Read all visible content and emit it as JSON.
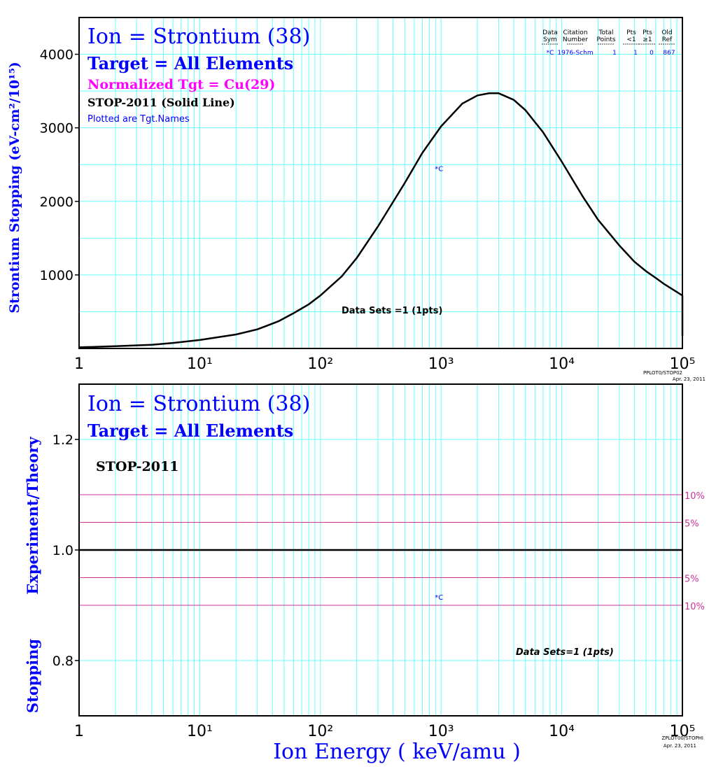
{
  "colors": {
    "blue": "#0000ff",
    "magenta": "#ff00ff",
    "grid": "#66ffff",
    "black": "#000000",
    "band": "#cc3399"
  },
  "top_panel": {
    "title": "Ion = Strontium (38)",
    "target": "Target = All Elements",
    "normalized": "Normalized Tgt = Cu(29)",
    "stop_line": "STOP-2011 (Solid Line)",
    "plotted": "Plotted are Tgt.Names",
    "data_sets": "Data Sets =1 (1pts)",
    "ylabel": "Strontium Stopping (eV-cm²/10¹⁵)",
    "footer_1": "PPLOT0/STOP02",
    "footer_2": "Apr. 23, 2011",
    "legend": {
      "headers": [
        [
          "Data",
          "Sym"
        ],
        [
          "Citation",
          "Number"
        ],
        [
          "Total",
          "Points"
        ],
        [
          "Pts",
          "<1"
        ],
        [
          "Pts",
          "≥1"
        ],
        [
          "Old",
          "Ref"
        ]
      ],
      "row": [
        "*C",
        "1976-Schm",
        "1",
        "1",
        "0",
        "867"
      ]
    }
  },
  "bottom_panel": {
    "title": "Ion = Strontium (38)",
    "target": "Target = All Elements",
    "stop_label": "STOP-2011",
    "data_sets": "Data Sets=1 (1pts)",
    "ylabel_1": "Stopping",
    "ylabel_2": "Experiment/Theory",
    "xlabel": "Ion Energy ( keV/amu )",
    "footer_1": "ZPLOT00/STOPHI",
    "footer_2": "Apr. 23, 2011",
    "band_labels": [
      "10%",
      "5%",
      "5%",
      "10%"
    ]
  },
  "chart_data": [
    {
      "type": "line",
      "xscale": "log",
      "xlim": [
        1,
        100000
      ],
      "ylim": [
        0,
        4500
      ],
      "x_tick_labels": [
        "1",
        "10¹",
        "10²",
        "10³",
        "10⁴",
        "10⁵"
      ],
      "y_ticks": [
        1000,
        2000,
        3000,
        4000
      ],
      "grid": true,
      "series": [
        {
          "name": "STOP-2011",
          "x": [
            1,
            2,
            4,
            6,
            10,
            20,
            30,
            45,
            60,
            80,
            100,
            150,
            200,
            300,
            500,
            700,
            1000,
            1500,
            2000,
            2500,
            3000,
            4000,
            5000,
            7000,
            10000,
            15000,
            20000,
            30000,
            40000,
            50000,
            60000,
            70000,
            80000,
            100000
          ],
          "y": [
            15,
            30,
            50,
            75,
            115,
            190,
            260,
            370,
            480,
            600,
            720,
            980,
            1230,
            1660,
            2250,
            2660,
            3020,
            3330,
            3440,
            3470,
            3470,
            3380,
            3240,
            2940,
            2540,
            2060,
            1750,
            1400,
            1180,
            1050,
            960,
            880,
            820,
            720
          ]
        }
      ],
      "points": [
        {
          "label": "*C",
          "x": 900,
          "y": 2450
        }
      ]
    },
    {
      "type": "line",
      "xscale": "log",
      "xlim": [
        1,
        100000
      ],
      "ylim": [
        0.7,
        1.3
      ],
      "x_tick_labels": [
        "1",
        "10¹",
        "10²",
        "10³",
        "10⁴",
        "10⁵"
      ],
      "y_ticks": [
        0.8,
        1.0,
        1.2
      ],
      "y_tick_labels": [
        "0.8",
        "1.0",
        "1.2"
      ],
      "reference_lines": [
        1.1,
        1.05,
        1.0,
        0.95,
        0.9
      ],
      "grid": true,
      "points": [
        {
          "label": "*C",
          "x": 900,
          "y": 0.915
        }
      ]
    }
  ]
}
